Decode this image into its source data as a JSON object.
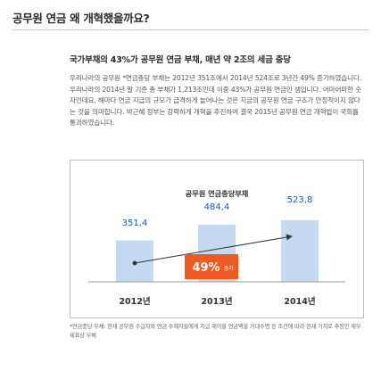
{
  "page": {
    "title": "공무원 연금 왜 개혁했을까요?",
    "subtitle": "국가부채의 43%가 공무원 연금 부채, 매년 약 2조의 세금 충당",
    "body": "우리나라의 공무원 *연금충당 부채는 2012년 351조에서 2014년 524조로 3년간 49% 증가하였습니다. 우리나라의 2014년 말 기준 총 부채가 1,213조인데 이중 43%가 공무원 연금인 셈입니다. 어마어마한 숫자인데요, 해마다 연금 지급의 규모가 급격하게 늘어나는 것은 지금의 공무원 연금 구조가 안정적이지 않다는 것을 의미합니다. 박근혜 정부는 강력하게 개혁을 추진하여 결국 2015년 공무원 연금 개혁법이 국회를 통과하였습니다.",
    "footnote": "*연금충당 부채: 현재 공무원 수급자와 연금 수혜자들에게 지급 해야할 연금액을 기대수명 등 조건에 따라 현재 가치로 추정한 재무제표상 부채"
  },
  "chart_data": {
    "type": "bar",
    "title": "공무원  연금충당부채",
    "categories": [
      "2012년",
      "2013년",
      "2014년"
    ],
    "values": [
      351.4,
      484.4,
      523.8
    ],
    "value_labels": [
      "351,4",
      "484,4",
      "523,8"
    ],
    "bar_color": "#c5d9f1",
    "value_color": "#1f5aa6",
    "annotation": {
      "value": "49%",
      "suffix": "증가",
      "color": "#f05a1e"
    },
    "trend_arrow": {
      "from_category": "2012년",
      "to_category": "2014년"
    }
  }
}
